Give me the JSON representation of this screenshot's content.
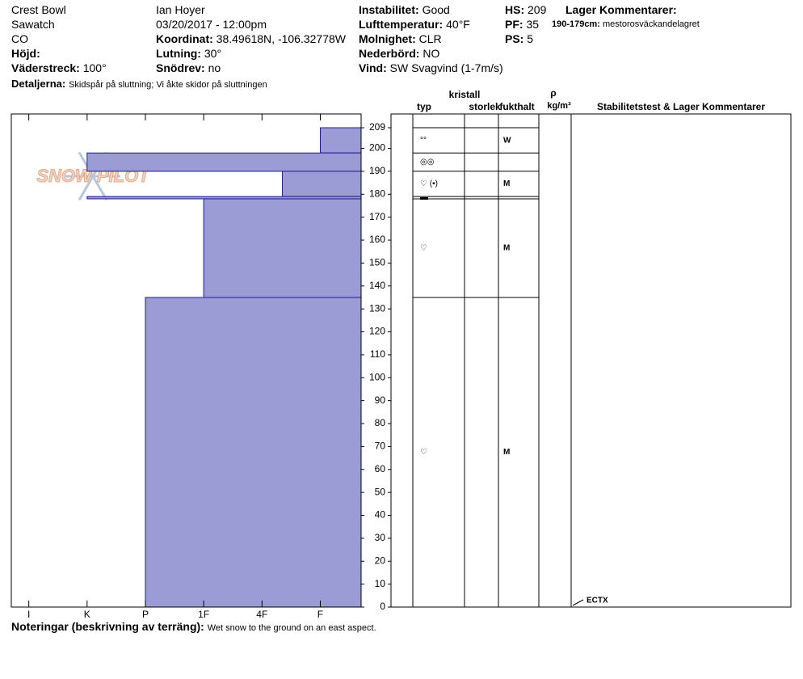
{
  "header": {
    "site": "Crest Bowl",
    "range": "Sawatch",
    "state": "CO",
    "observer": "Ian Hoyer",
    "datetime": "03/20/2017 - 12:00pm",
    "fields": [
      {
        "label": "Höjd:"
      },
      {
        "label": "Väderstreck:",
        "value": "100°"
      },
      {
        "label": "Koordinat:",
        "value": "38.49618N, -106.32778W"
      },
      {
        "label": "Lutning:",
        "value": "30°"
      },
      {
        "label": "Snödrev:",
        "value": "no"
      },
      {
        "label": "Instabilitet:",
        "value": "Good"
      },
      {
        "label": "Lufttemperatur:",
        "value": "40°F"
      },
      {
        "label": "Molnighet:",
        "value": "CLR"
      },
      {
        "label": "Nederbörd:",
        "value": "NO"
      },
      {
        "label": "Vind:",
        "value": "SW  Svagvind (1-7m/s)"
      },
      {
        "label": "HS:",
        "value": 209
      },
      {
        "label": "PF:",
        "value": 35
      },
      {
        "label": "PS:",
        "value": 5
      }
    ],
    "details": {
      "label": "Detaljerna:",
      "text": "Skidspår på sluttning;  Vi åkte skidor på sluttningen"
    },
    "layer_comments": {
      "title": "Lager Kommentarer:",
      "range": "190-179cm:",
      "text": "mestorosväckandelagret"
    }
  },
  "notes": {
    "label": "Noteringar (beskrivning av terräng):",
    "text": "Wet snow to the ground on an east aspect."
  },
  "logo": "SNOW PILOT",
  "chart_data": {
    "type": "profile",
    "color": "#9b9bd6",
    "edge_color": "#1c1c8c",
    "columns": {
      "crystal": "kristall",
      "type": "typ",
      "size": "storlek",
      "moisture": "fukthalt",
      "density": "ρ",
      "density_unit": "kg/m³",
      "comments": "Stabilitetstest & Lager Kommentarer"
    },
    "ylim": [
      0,
      215
    ],
    "yticks": [
      0,
      10,
      20,
      30,
      40,
      50,
      60,
      70,
      80,
      90,
      100,
      110,
      120,
      130,
      140,
      150,
      160,
      170,
      180,
      190,
      200,
      209
    ],
    "xlim": [
      6.3,
      0.3
    ],
    "xticks": [
      {
        "value": 6,
        "label": "I"
      },
      {
        "value": 5,
        "label": "K"
      },
      {
        "value": 4,
        "label": "P"
      },
      {
        "value": 3,
        "label": "1F"
      },
      {
        "value": 2,
        "label": "4F"
      },
      {
        "value": 1,
        "label": "F"
      }
    ],
    "layers": [
      {
        "top": 209,
        "bottom": 198,
        "hardness": 1,
        "grain": "°°",
        "moisture": "W"
      },
      {
        "top": 198,
        "bottom": 190,
        "hardness": 5,
        "grain": "◎◎"
      },
      {
        "top": 190,
        "bottom": 179,
        "hardness": 1.65,
        "grain": "♡ (▪)",
        "moisture": "M"
      },
      {
        "top": 179,
        "bottom": 178,
        "hardness": 5,
        "grain": "▬"
      },
      {
        "top": 178,
        "bottom": 135,
        "hardness": 3,
        "grain": "♡",
        "moisture": "M"
      },
      {
        "top": 135,
        "bottom": 0,
        "hardness": 4,
        "grain": "♡",
        "moisture": "M"
      }
    ],
    "tests": [
      {
        "height": 0,
        "label": "ECTX"
      }
    ]
  }
}
